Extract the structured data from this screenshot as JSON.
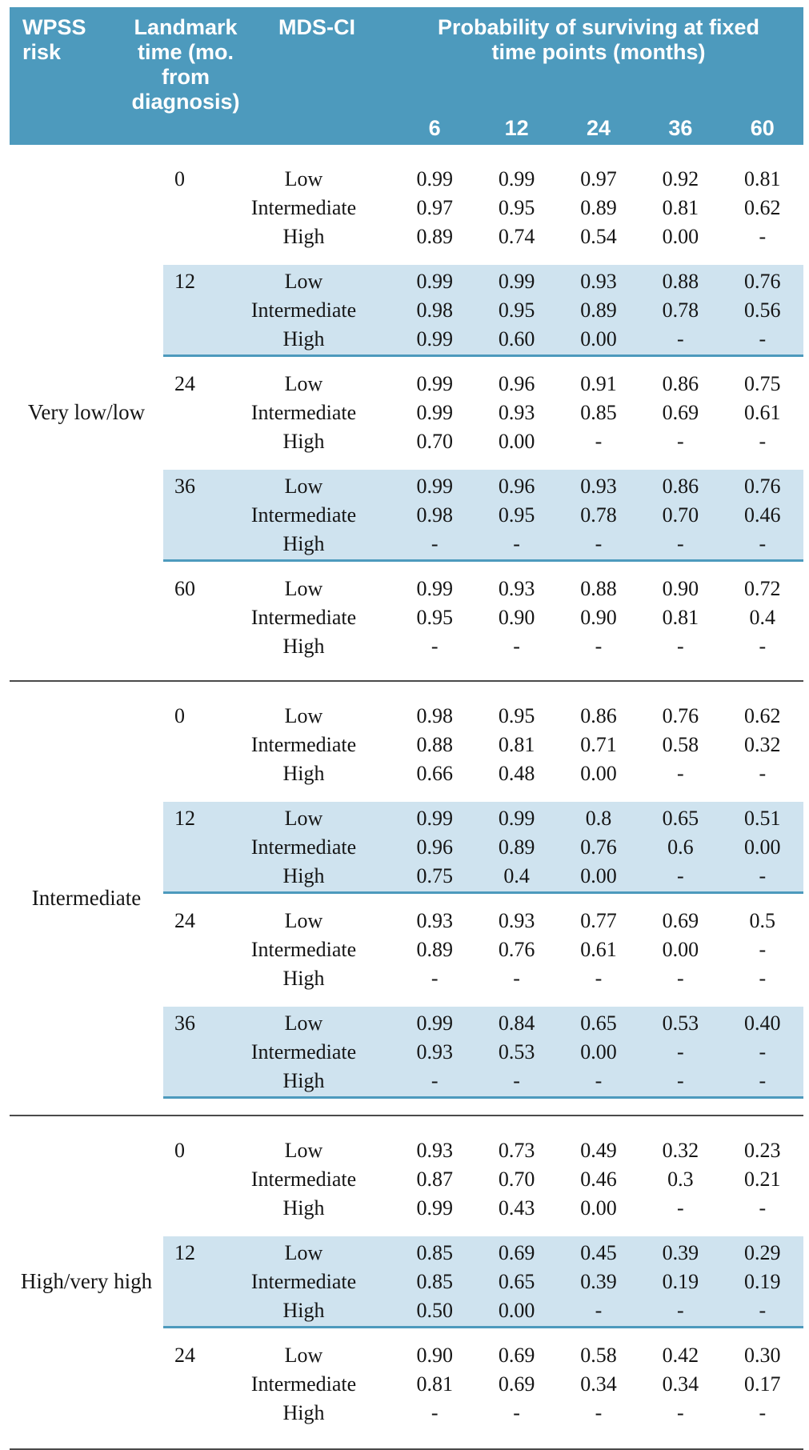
{
  "colors": {
    "header_teal": "#4d9abd",
    "band_blue": "#cfe3ef",
    "rule_dark": "#4a4a4a"
  },
  "table": {
    "header": {
      "wpss": "WPSS\nrisk",
      "landmark": "Landmark\ntime (mo.\nfrom diagnosis)",
      "mdsci": "MDS-CI",
      "prob": "Probability of surviving at fixed\ntime points (months)",
      "time_points": [
        "6",
        "12",
        "24",
        "36",
        "60"
      ]
    },
    "groups": [
      {
        "label": "Very low/low",
        "blocks": [
          {
            "landmark": "0",
            "shaded": false,
            "rows": [
              {
                "mds": "Low",
                "values": [
                  "0.99",
                  "0.99",
                  "0.97",
                  "0.92",
                  "0.81"
                ]
              },
              {
                "mds": "Intermediate",
                "values": [
                  "0.97",
                  "0.95",
                  "0.89",
                  "0.81",
                  "0.62"
                ]
              },
              {
                "mds": "High",
                "values": [
                  "0.89",
                  "0.74",
                  "0.54",
                  "0.00",
                  "-"
                ]
              }
            ]
          },
          {
            "landmark": "12",
            "shaded": true,
            "rows": [
              {
                "mds": "Low",
                "values": [
                  "0.99",
                  "0.99",
                  "0.93",
                  "0.88",
                  "0.76"
                ]
              },
              {
                "mds": "Intermediate",
                "values": [
                  "0.98",
                  "0.95",
                  "0.89",
                  "0.78",
                  "0.56"
                ]
              },
              {
                "mds": "High",
                "values": [
                  "0.99",
                  "0.60",
                  "0.00",
                  "-",
                  "-"
                ]
              }
            ]
          },
          {
            "landmark": "24",
            "shaded": false,
            "rows": [
              {
                "mds": "Low",
                "values": [
                  "0.99",
                  "0.96",
                  "0.91",
                  "0.86",
                  "0.75"
                ]
              },
              {
                "mds": "Intermediate",
                "values": [
                  "0.99",
                  "0.93",
                  "0.85",
                  "0.69",
                  "0.61"
                ]
              },
              {
                "mds": "High",
                "values": [
                  "0.70",
                  "0.00",
                  "-",
                  "-",
                  "-"
                ]
              }
            ]
          },
          {
            "landmark": "36",
            "shaded": true,
            "rows": [
              {
                "mds": "Low",
                "values": [
                  "0.99",
                  "0.96",
                  "0.93",
                  "0.86",
                  "0.76"
                ]
              },
              {
                "mds": "Intermediate",
                "values": [
                  "0.98",
                  "0.95",
                  "0.78",
                  "0.70",
                  "0.46"
                ]
              },
              {
                "mds": "High",
                "values": [
                  "-",
                  "-",
                  "-",
                  "-",
                  "-"
                ]
              }
            ]
          },
          {
            "landmark": "60",
            "shaded": false,
            "rows": [
              {
                "mds": "Low",
                "values": [
                  "0.99",
                  "0.93",
                  "0.88",
                  "0.90",
                  "0.72"
                ]
              },
              {
                "mds": "Intermediate",
                "values": [
                  "0.95",
                  "0.90",
                  "0.90",
                  "0.81",
                  "0.4"
                ]
              },
              {
                "mds": "High",
                "values": [
                  "-",
                  "-",
                  "-",
                  "-",
                  "-"
                ]
              }
            ]
          }
        ]
      },
      {
        "label": "Intermediate",
        "blocks": [
          {
            "landmark": "0",
            "shaded": false,
            "rows": [
              {
                "mds": "Low",
                "values": [
                  "0.98",
                  "0.95",
                  "0.86",
                  "0.76",
                  "0.62"
                ]
              },
              {
                "mds": "Intermediate",
                "values": [
                  "0.88",
                  "0.81",
                  "0.71",
                  "0.58",
                  "0.32"
                ]
              },
              {
                "mds": "High",
                "values": [
                  "0.66",
                  "0.48",
                  "0.00",
                  "-",
                  "-"
                ]
              }
            ]
          },
          {
            "landmark": "12",
            "shaded": true,
            "rows": [
              {
                "mds": "Low",
                "values": [
                  "0.99",
                  "0.99",
                  "0.8",
                  "0.65",
                  "0.51"
                ]
              },
              {
                "mds": "Intermediate",
                "values": [
                  "0.96",
                  "0.89",
                  "0.76",
                  "0.6",
                  "0.00"
                ]
              },
              {
                "mds": "High",
                "values": [
                  "0.75",
                  "0.4",
                  "0.00",
                  "-",
                  "-"
                ]
              }
            ]
          },
          {
            "landmark": "24",
            "shaded": false,
            "rows": [
              {
                "mds": "Low",
                "values": [
                  "0.93",
                  "0.93",
                  "0.77",
                  "0.69",
                  "0.5"
                ]
              },
              {
                "mds": "Intermediate",
                "values": [
                  "0.89",
                  "0.76",
                  "0.61",
                  "0.00",
                  "-"
                ]
              },
              {
                "mds": "High",
                "values": [
                  "-",
                  "-",
                  "-",
                  "-",
                  "-"
                ]
              }
            ]
          },
          {
            "landmark": "36",
            "shaded": true,
            "rows": [
              {
                "mds": "Low",
                "values": [
                  "0.99",
                  "0.84",
                  "0.65",
                  "0.53",
                  "0.40"
                ]
              },
              {
                "mds": "Intermediate",
                "values": [
                  "0.93",
                  "0.53",
                  "0.00",
                  "-",
                  "-"
                ]
              },
              {
                "mds": "High",
                "values": [
                  "-",
                  "-",
                  "-",
                  "-",
                  "-"
                ]
              }
            ]
          }
        ]
      },
      {
        "label": "High/very high",
        "blocks": [
          {
            "landmark": "0",
            "shaded": false,
            "rows": [
              {
                "mds": "Low",
                "values": [
                  "0.93",
                  "0.73",
                  "0.49",
                  "0.32",
                  "0.23"
                ]
              },
              {
                "mds": "Intermediate",
                "values": [
                  "0.87",
                  "0.70",
                  "0.46",
                  "0.3",
                  "0.21"
                ]
              },
              {
                "mds": "High",
                "values": [
                  "0.99",
                  "0.43",
                  "0.00",
                  "-",
                  "-"
                ]
              }
            ]
          },
          {
            "landmark": "12",
            "shaded": true,
            "rows": [
              {
                "mds": "Low",
                "values": [
                  "0.85",
                  "0.69",
                  "0.45",
                  "0.39",
                  "0.29"
                ]
              },
              {
                "mds": "Intermediate",
                "values": [
                  "0.85",
                  "0.65",
                  "0.39",
                  "0.19",
                  "0.19"
                ]
              },
              {
                "mds": "High",
                "values": [
                  "0.50",
                  "0.00",
                  "-",
                  "-",
                  "-"
                ]
              }
            ]
          },
          {
            "landmark": "24",
            "shaded": false,
            "rows": [
              {
                "mds": "Low",
                "values": [
                  "0.90",
                  "0.69",
                  "0.58",
                  "0.42",
                  "0.30"
                ]
              },
              {
                "mds": "Intermediate",
                "values": [
                  "0.81",
                  "0.69",
                  "0.34",
                  "0.34",
                  "0.17"
                ]
              },
              {
                "mds": "High",
                "values": [
                  "-",
                  "-",
                  "-",
                  "-",
                  "-"
                ]
              }
            ]
          }
        ]
      }
    ]
  }
}
